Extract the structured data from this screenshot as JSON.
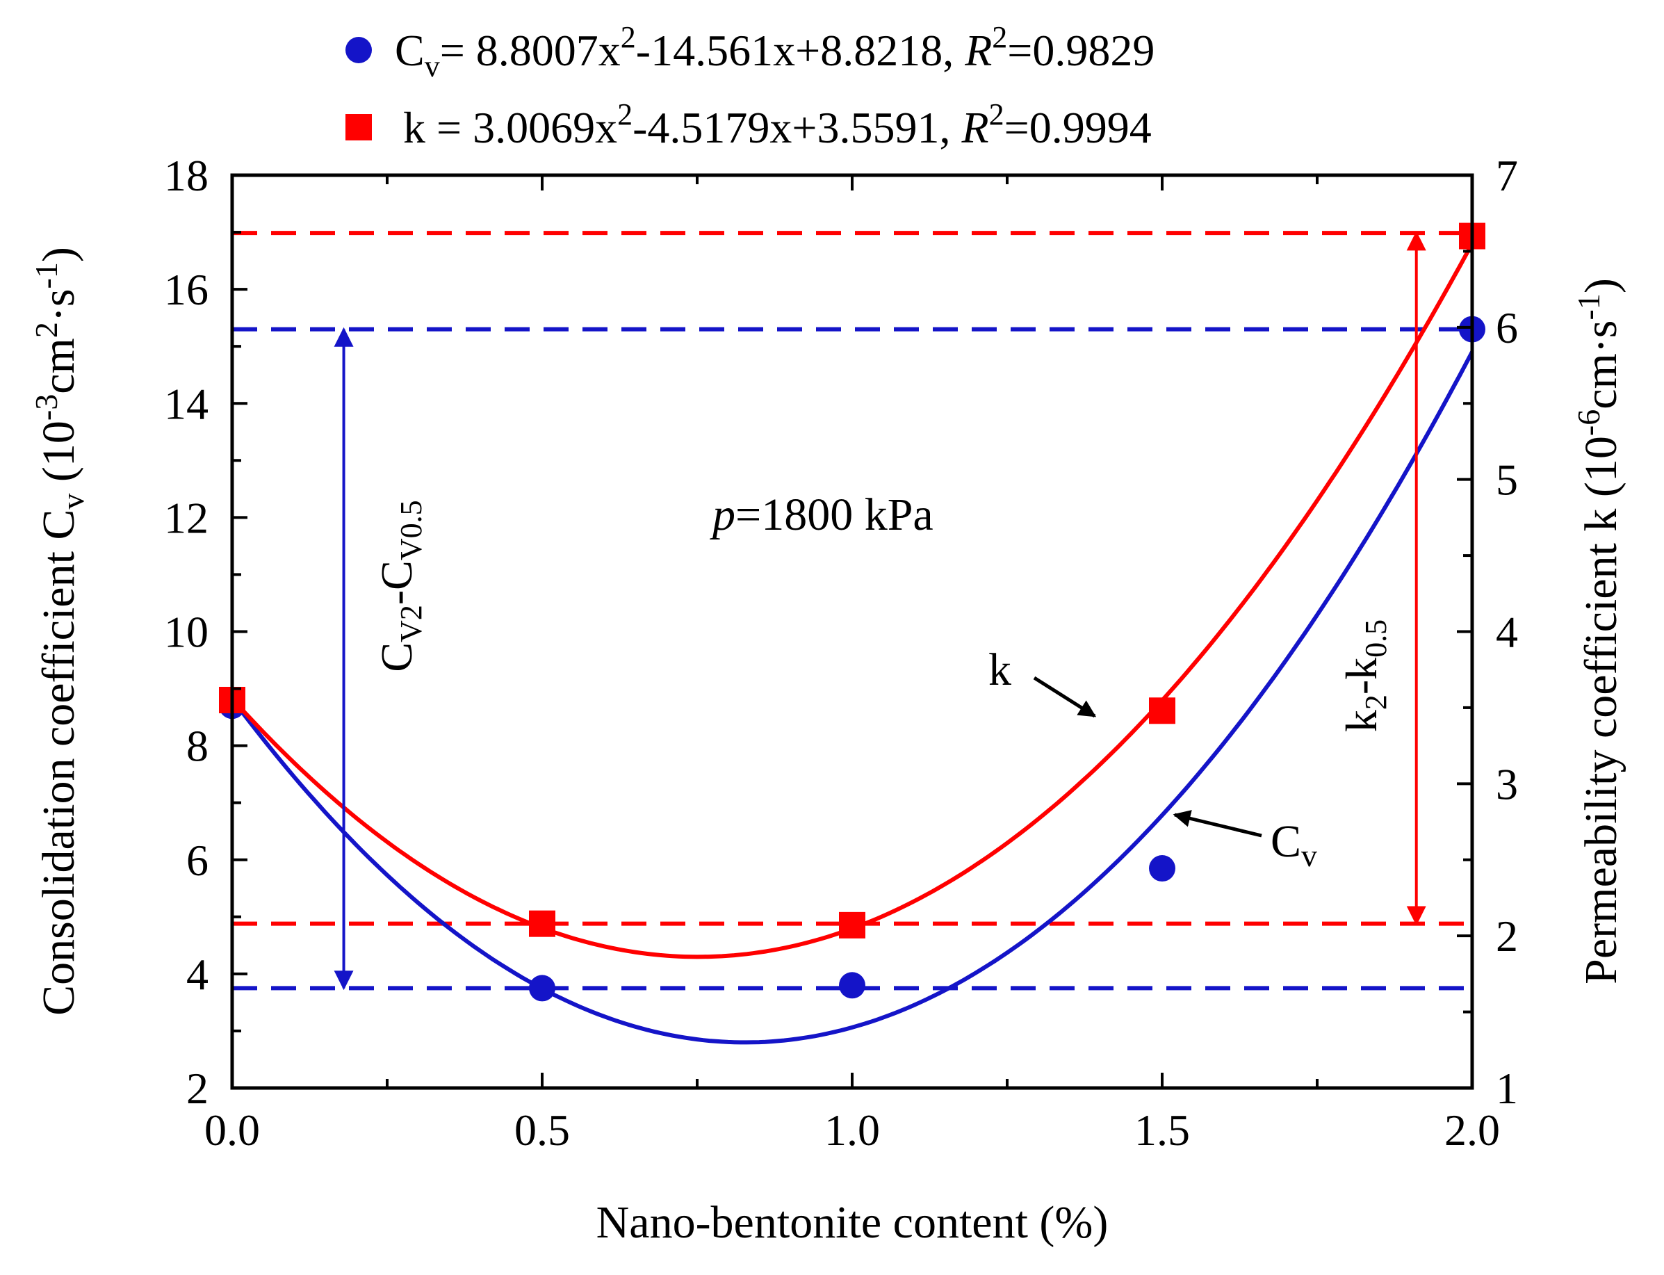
{
  "chart_data": {
    "type": "scatter",
    "title": "",
    "xlabel": "Nano-bentonite content (%)",
    "ylabel_left": {
      "main": "Consolidation coefficient C",
      "sub": "v",
      "unit_a": " (10",
      "unit_a_sup": "-3",
      "unit_b": "cm",
      "unit_b_sup": "2",
      "unit_c": "·s",
      "unit_c_sup": "-1",
      "unit_d": ")"
    },
    "ylabel_right": {
      "main": "Permeability coefficient k (10",
      "sup1": "-6",
      "mid": "cm·s",
      "sup2": "-1",
      "end": ")"
    },
    "xlim": [
      0.0,
      2.0
    ],
    "ylim_left": [
      2,
      18
    ],
    "ylim_right": [
      1,
      7
    ],
    "xticks": [
      "0.0",
      "0.5",
      "1.0",
      "1.5",
      "2.0"
    ],
    "yticks_left": [
      "2",
      "4",
      "6",
      "8",
      "10",
      "12",
      "14",
      "16",
      "18"
    ],
    "yticks_right": [
      "1",
      "2",
      "3",
      "4",
      "5",
      "6",
      "7"
    ],
    "x": [
      0.0,
      0.5,
      1.0,
      1.5,
      2.0
    ],
    "series": [
      {
        "name": "Cv",
        "axis": "left",
        "marker": "circle",
        "color": "#1414c8",
        "values": [
          8.7,
          3.75,
          3.8,
          5.85,
          15.3
        ],
        "fit": {
          "a": 8.8007,
          "b": -14.561,
          "c": 8.8218
        }
      },
      {
        "name": "k",
        "axis": "right",
        "marker": "square",
        "color": "#ff0000",
        "values": [
          3.55,
          2.08,
          2.07,
          3.48,
          6.6
        ],
        "fit": {
          "a": 3.0069,
          "b": -4.5179,
          "c": 3.5591
        }
      }
    ],
    "reference_lines": [
      {
        "axis": "left",
        "value": 15.3,
        "color": "#1414c8"
      },
      {
        "axis": "left",
        "value": 3.75,
        "color": "#1414c8"
      },
      {
        "axis": "right",
        "value": 6.62,
        "color": "#ff0000"
      },
      {
        "axis": "right",
        "value": 2.08,
        "color": "#ff0000"
      }
    ],
    "double_arrows": [
      {
        "axis": "left",
        "x": 0.18,
        "from": 3.75,
        "to": 15.3,
        "color": "#1414c8"
      },
      {
        "axis": "right",
        "x": 1.91,
        "from": 2.08,
        "to": 6.62,
        "color": "#ff0000"
      }
    ],
    "legend": {
      "placement": "top",
      "cv": {
        "lhs": "C",
        "lhs_sub": "v",
        "eq1": "= 8.8007x",
        "sup": "2",
        "eq2": "-14.561x+8.8218, ",
        "r": "R",
        "r_sup": "2",
        "r_val": "=0.9829"
      },
      "k": {
        "eq1": "k = 3.0069x",
        "sup": "2",
        "eq2": "-4.5179x+3.5591, ",
        "r": "R",
        "r_sup": "2",
        "r_val": "=0.9994"
      }
    },
    "annotations": {
      "pressure": {
        "p": "p",
        "rest": "=1800 kPa"
      },
      "k_label": "k",
      "cv_label": {
        "main": "C",
        "sub": "v"
      },
      "cv_diff": {
        "c1": "C",
        "s1": "V2",
        "dash": "-",
        "c2": "C",
        "s2": "V0.5"
      },
      "k_diff": {
        "k1": "k",
        "s1": "2",
        "dash": "-",
        "k2": "k",
        "s2": "0.5"
      }
    }
  }
}
